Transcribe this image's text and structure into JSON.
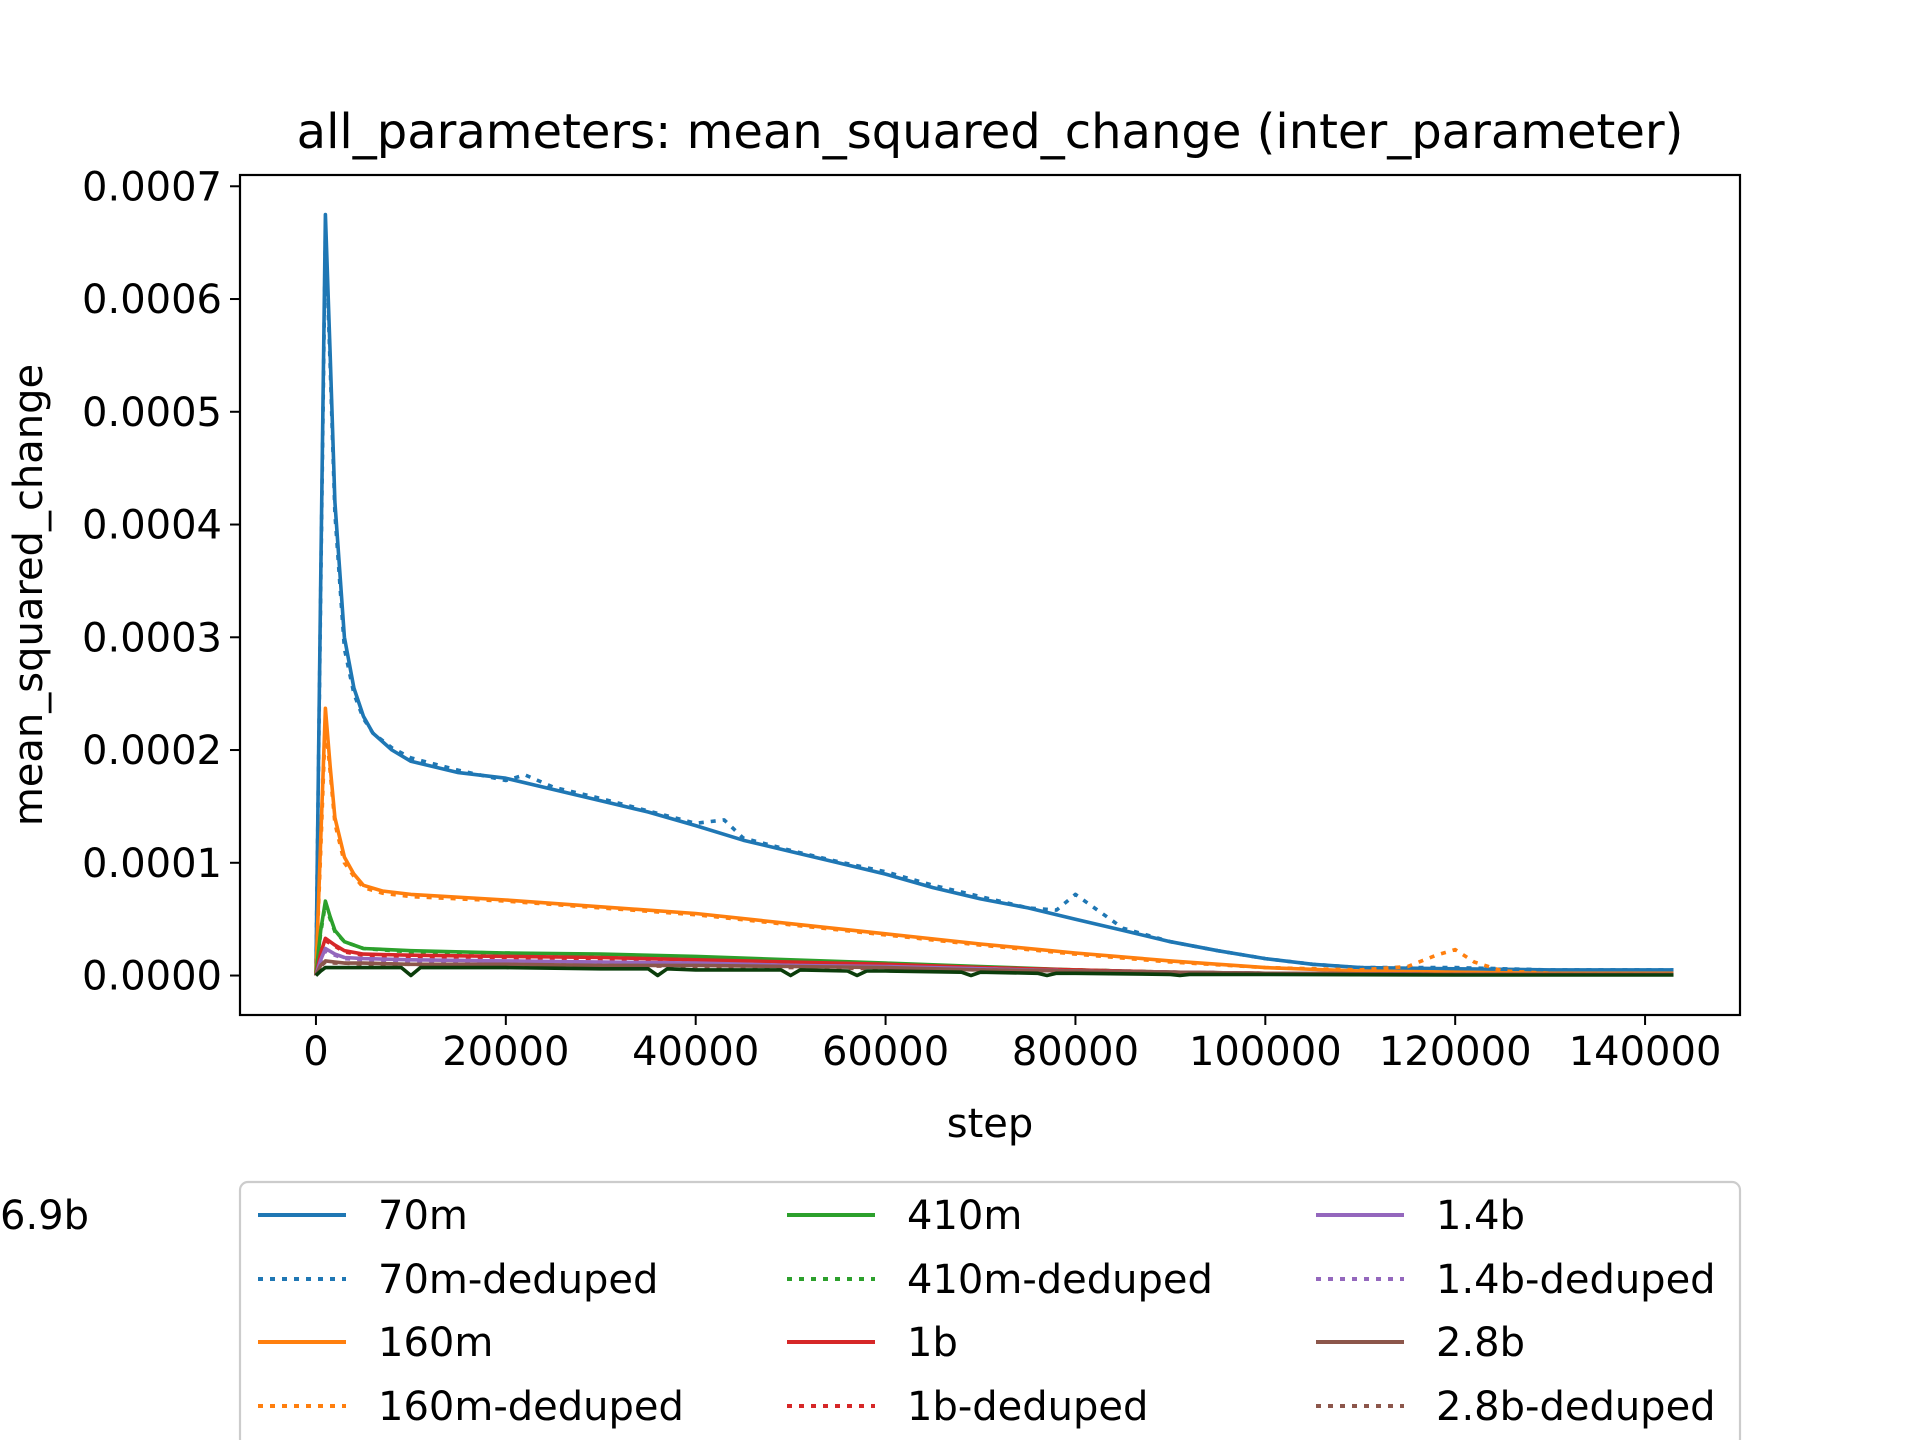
{
  "chart_data": {
    "type": "line",
    "title": "all_parameters: mean_squared_change (inter_parameter)",
    "xlabel": "step",
    "ylabel": "mean_squared_change",
    "xlim": [
      -8000,
      150000
    ],
    "ylim": [
      -3.5e-05,
      0.00071
    ],
    "xticks": [
      0,
      20000,
      40000,
      60000,
      80000,
      100000,
      120000,
      140000
    ],
    "xtick_labels": [
      "0",
      "20000",
      "40000",
      "60000",
      "80000",
      "100000",
      "120000",
      "140000"
    ],
    "yticks": [
      0.0,
      0.0001,
      0.0002,
      0.0003,
      0.0004,
      0.0005,
      0.0006,
      0.0007
    ],
    "ytick_labels": [
      "0.0000",
      "0.0001",
      "0.0002",
      "0.0003",
      "0.0004",
      "0.0005",
      "0.0006",
      "0.0007"
    ],
    "grid": false,
    "legend_placement": "below",
    "series": [
      {
        "name": "70m",
        "color": "#1f77b4",
        "style": "solid",
        "x": [
          0,
          500,
          1000,
          1500,
          2000,
          3000,
          4000,
          5000,
          6000,
          8000,
          10000,
          15000,
          20000,
          25000,
          30000,
          35000,
          40000,
          45000,
          50000,
          55000,
          60000,
          65000,
          70000,
          75000,
          80000,
          85000,
          90000,
          95000,
          100000,
          105000,
          110000,
          120000,
          130000,
          143000
        ],
        "y": [
          0.0,
          0.00035,
          0.000675,
          0.00055,
          0.00042,
          0.0003,
          0.000255,
          0.00023,
          0.000215,
          0.0002,
          0.00019,
          0.00018,
          0.000175,
          0.000165,
          0.000155,
          0.000145,
          0.000133,
          0.00012,
          0.00011,
          0.0001,
          9e-05,
          7.8e-05,
          6.8e-05,
          6e-05,
          5e-05,
          4e-05,
          3e-05,
          2.2e-05,
          1.5e-05,
          1e-05,
          7e-06,
          6e-06,
          5e-06,
          5e-06
        ]
      },
      {
        "name": "70m-deduped",
        "color": "#1f77b4",
        "style": "dotted",
        "x": [
          0,
          500,
          1000,
          1500,
          2000,
          3000,
          4000,
          5000,
          6000,
          8000,
          10000,
          15000,
          20000,
          22000,
          25000,
          30000,
          35000,
          40000,
          43000,
          45000,
          50000,
          55000,
          60000,
          65000,
          70000,
          75000,
          78000,
          80000,
          82000,
          85000,
          90000,
          95000,
          100000,
          105000,
          110000,
          120000,
          130000,
          143000
        ],
        "y": [
          0.0,
          0.00034,
          0.00066,
          0.00054,
          0.00041,
          0.00029,
          0.00025,
          0.000228,
          0.000215,
          0.000202,
          0.000193,
          0.000182,
          0.000173,
          0.000178,
          0.000167,
          0.000157,
          0.000146,
          0.000135,
          0.000138,
          0.000122,
          0.000111,
          0.000101,
          9.2e-05,
          8e-05,
          7e-05,
          6e-05,
          5.8e-05,
          7.2e-05,
          6e-05,
          4.2e-05,
          3e-05,
          2.2e-05,
          1.5e-05,
          1e-05,
          7e-06,
          7e-06,
          5e-06,
          5e-06
        ]
      },
      {
        "name": "160m",
        "color": "#ff7f0e",
        "style": "solid",
        "x": [
          0,
          500,
          1000,
          1500,
          2000,
          3000,
          4000,
          5000,
          7000,
          10000,
          20000,
          30000,
          40000,
          50000,
          60000,
          70000,
          80000,
          90000,
          100000,
          110000,
          120000,
          130000,
          143000
        ],
        "y": [
          0.0,
          0.00012,
          0.000237,
          0.000185,
          0.00014,
          0.000105,
          9e-05,
          8e-05,
          7.5e-05,
          7.2e-05,
          6.7e-05,
          6.1e-05,
          5.5e-05,
          4.6e-05,
          3.7e-05,
          2.8e-05,
          2e-05,
          1.3e-05,
          7e-06,
          4e-06,
          3e-06,
          2e-06,
          2e-06
        ]
      },
      {
        "name": "160m-deduped",
        "color": "#ff7f0e",
        "style": "dotted",
        "x": [
          0,
          500,
          1000,
          1500,
          2000,
          3000,
          4000,
          5000,
          7000,
          10000,
          20000,
          30000,
          40000,
          50000,
          60000,
          70000,
          80000,
          90000,
          100000,
          110000,
          115000,
          118000,
          120000,
          122000,
          125000,
          130000,
          143000
        ],
        "y": [
          0.0,
          0.00011,
          0.000225,
          0.00018,
          0.000135,
          0.0001,
          8.8e-05,
          7.8e-05,
          7.3e-05,
          7e-05,
          6.6e-05,
          6e-05,
          5.4e-05,
          4.5e-05,
          3.6e-05,
          2.7e-05,
          1.9e-05,
          1.2e-05,
          7e-06,
          5e-06,
          8e-06,
          1.8e-05,
          2.3e-05,
          1.2e-05,
          4e-06,
          2e-06,
          2e-06
        ]
      },
      {
        "name": "410m",
        "color": "#2ca02c",
        "style": "solid",
        "x": [
          0,
          500,
          1000,
          1500,
          2000,
          3000,
          5000,
          10000,
          20000,
          30000,
          40000,
          50000,
          60000,
          70000,
          80000,
          90000,
          100000,
          120000,
          143000
        ],
        "y": [
          0.0,
          4e-05,
          6.6e-05,
          5.2e-05,
          4e-05,
          3e-05,
          2.4e-05,
          2.2e-05,
          2e-05,
          1.9e-05,
          1.7e-05,
          1.4e-05,
          1.1e-05,
          8e-06,
          5e-06,
          3e-06,
          2e-06,
          1e-06,
          1e-06
        ]
      },
      {
        "name": "410m-deduped",
        "color": "#2ca02c",
        "style": "dotted",
        "x": [
          0,
          500,
          1000,
          1500,
          2000,
          3000,
          5000,
          10000,
          20000,
          30000,
          40000,
          50000,
          60000,
          70000,
          80000,
          90000,
          100000,
          120000,
          143000
        ],
        "y": [
          0.0,
          3.8e-05,
          6.3e-05,
          5e-05,
          3.9e-05,
          3e-05,
          2.4e-05,
          2.1e-05,
          2e-05,
          1.8e-05,
          1.6e-05,
          1.3e-05,
          1e-05,
          7e-06,
          5e-06,
          3e-06,
          2e-06,
          1e-06,
          1e-06
        ]
      },
      {
        "name": "1b",
        "color": "#d62728",
        "style": "solid",
        "x": [
          0,
          500,
          1000,
          2000,
          3000,
          5000,
          10000,
          20000,
          30000,
          40000,
          50000,
          60000,
          70000,
          80000,
          90000,
          100000,
          120000,
          143000
        ],
        "y": [
          0.0,
          2e-05,
          3.3e-05,
          2.7e-05,
          2.2e-05,
          1.9e-05,
          1.8e-05,
          1.7e-05,
          1.6e-05,
          1.4e-05,
          1.2e-05,
          1e-05,
          7e-06,
          5e-06,
          3e-06,
          2e-06,
          1e-06,
          1e-06
        ]
      },
      {
        "name": "1b-deduped",
        "color": "#d62728",
        "style": "dotted",
        "x": [
          0,
          500,
          1000,
          2000,
          3000,
          5000,
          10000,
          20000,
          30000,
          40000,
          50000,
          60000,
          70000,
          80000,
          90000,
          100000,
          120000,
          143000
        ],
        "y": [
          0.0,
          1.9e-05,
          3.1e-05,
          2.6e-05,
          2.1e-05,
          1.8e-05,
          1.7e-05,
          1.6e-05,
          1.5e-05,
          1.3e-05,
          1.1e-05,
          9e-06,
          7e-06,
          5e-06,
          3e-06,
          2e-06,
          1e-06,
          1e-06
        ]
      },
      {
        "name": "1.4b",
        "color": "#9467bd",
        "style": "solid",
        "x": [
          0,
          500,
          1000,
          2000,
          3000,
          5000,
          10000,
          20000,
          30000,
          40000,
          50000,
          60000,
          70000,
          80000,
          90000,
          100000,
          120000,
          143000
        ],
        "y": [
          0.0,
          1.4e-05,
          2.4e-05,
          1.9e-05,
          1.6e-05,
          1.5e-05,
          1.4e-05,
          1.3e-05,
          1.2e-05,
          1.1e-05,
          9e-06,
          8e-06,
          6e-06,
          4e-06,
          3e-06,
          2e-06,
          1e-06,
          1e-06
        ]
      },
      {
        "name": "1.4b-deduped",
        "color": "#9467bd",
        "style": "dotted",
        "x": [
          0,
          500,
          1000,
          2000,
          3000,
          5000,
          10000,
          20000,
          30000,
          40000,
          50000,
          60000,
          70000,
          80000,
          90000,
          100000,
          120000,
          143000
        ],
        "y": [
          0.0,
          1.3e-05,
          2.2e-05,
          1.8e-05,
          1.5e-05,
          1.4e-05,
          1.3e-05,
          1.2e-05,
          1.1e-05,
          1e-05,
          9e-06,
          7e-06,
          6e-06,
          4e-06,
          3e-06,
          2e-06,
          1e-06,
          1e-06
        ]
      },
      {
        "name": "2.8b",
        "color": "#8c564b",
        "style": "solid",
        "x": [
          0,
          500,
          1000,
          2000,
          3000,
          5000,
          10000,
          20000,
          30000,
          40000,
          50000,
          60000,
          70000,
          80000,
          90000,
          100000,
          120000,
          143000
        ],
        "y": [
          0.0,
          9e-06,
          1.3e-05,
          1.2e-05,
          1.1e-05,
          1.1e-05,
          1e-05,
          1e-05,
          9e-06,
          9e-06,
          8e-06,
          7e-06,
          5e-06,
          4e-06,
          3e-06,
          2e-06,
          1e-06,
          1e-06
        ]
      },
      {
        "name": "2.8b-deduped",
        "color": "#8c564b",
        "style": "dotted",
        "x": [
          0,
          500,
          1000,
          2000,
          3000,
          5000,
          10000,
          20000,
          30000,
          40000,
          50000,
          60000,
          70000,
          80000,
          90000,
          100000,
          120000,
          143000
        ],
        "y": [
          0.0,
          8e-06,
          1.2e-05,
          1.1e-05,
          1.1e-05,
          1e-05,
          1e-05,
          9e-06,
          9e-06,
          8e-06,
          7e-06,
          6e-06,
          5e-06,
          4e-06,
          3e-06,
          2e-06,
          1e-06,
          1e-06
        ]
      },
      {
        "name": "6.9b",
        "color": "#0b3d0b",
        "style": "solid",
        "x": [
          0,
          500,
          1000,
          2000,
          5000,
          9000,
          10000,
          11000,
          20000,
          30000,
          35000,
          36000,
          37000,
          40000,
          49000,
          50000,
          51000,
          56000,
          57000,
          58000,
          60000,
          68000,
          69000,
          70000,
          76000,
          77000,
          78000,
          80000,
          90000,
          91000,
          92000,
          100000,
          120000,
          143000
        ],
        "y": [
          0.0,
          4e-06,
          7e-06,
          7e-06,
          7e-06,
          7e-06,
          0.0,
          7e-06,
          7e-06,
          6e-06,
          6e-06,
          0.0,
          6e-06,
          5e-06,
          5e-06,
          0.0,
          5e-06,
          4e-06,
          0.0,
          4e-06,
          4e-06,
          3e-06,
          0.0,
          3e-06,
          2e-06,
          0.0,
          2e-06,
          2e-06,
          1e-06,
          0.0,
          1e-06,
          1e-06,
          5e-07,
          5e-07
        ]
      }
    ]
  }
}
